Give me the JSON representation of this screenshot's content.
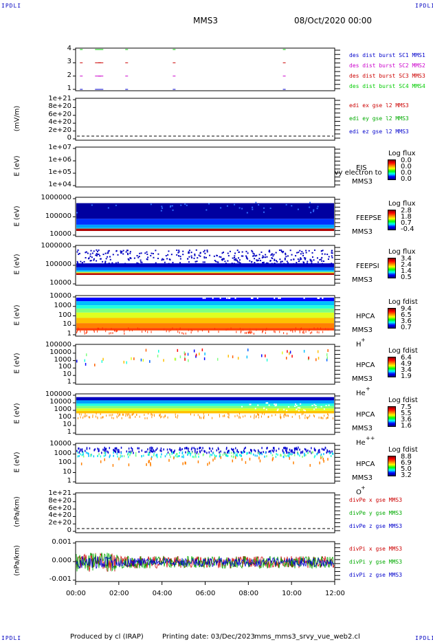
{
  "corners": {
    "tl": "IPDLI",
    "tr": "IPDLI",
    "bl": "IPDLI",
    "br": "IPDLI"
  },
  "header": {
    "title": "MMS3",
    "date": "08/Oct/2020 00:00"
  },
  "footer": {
    "produced": "Produced by cl (IRAP)",
    "printed": "Printing date: 03/Dec/2023",
    "script": "mms_mms3_srvy_vue_web2.cl"
  },
  "chart_data": [
    {
      "type": "scatter",
      "title": "",
      "ylabel": "",
      "yticks": [
        "4",
        "3",
        "2",
        "1"
      ],
      "legend": [
        {
          "label": "des dist burst SC1 MMS1",
          "color": "#0000cc"
        },
        {
          "label": "des dist burst SC2 MMS2",
          "color": "#cc00cc"
        },
        {
          "label": "des dist burst SC3 MMS3",
          "color": "#cc0000"
        },
        {
          "label": "des dist burst SC4 MMS4",
          "color": "#00cc00"
        }
      ],
      "burst_times_hours": [
        0.2,
        0.9,
        1.05,
        2.3,
        4.5,
        9.6
      ]
    },
    {
      "type": "line",
      "ylabel": "(mV/m)",
      "yticks": [
        "1e+21",
        "8e+20",
        "6e+20",
        "4e+20",
        "2e+20",
        "0"
      ],
      "legend": [
        {
          "label": "edi ex gse l2 MMS3",
          "color": "#cc0000"
        },
        {
          "label": "edi ey gse l2 MMS3",
          "color": "#00aa00"
        },
        {
          "label": "edi ez gse l2 MMS3",
          "color": "#0000cc"
        }
      ]
    },
    {
      "type": "heatmap",
      "ylabel": "E (eV)",
      "yticks": [
        "1e+07",
        "1e+06",
        "1e+05",
        "1e+04"
      ],
      "inst": [
        "EIS",
        "MMS3"
      ],
      "overlay": "Lvy electron to",
      "cbar_title": "Log flux",
      "cbar_values": [
        "0.0",
        "0.0",
        "0.0",
        "0.0"
      ]
    },
    {
      "type": "heatmap",
      "ylabel": "E (eV)",
      "yticks": [
        "1000000",
        "100000",
        "10000"
      ],
      "inst": [
        "FEEPSE",
        "MMS3"
      ],
      "cbar_title": "Log flux",
      "cbar_values": [
        "2.8",
        "1.8",
        "0.7",
        "-0.4"
      ]
    },
    {
      "type": "heatmap",
      "ylabel": "E (eV)",
      "yticks": [
        "1000000",
        "100000",
        "10000"
      ],
      "inst": [
        "FEEPSI",
        "MMS3"
      ],
      "cbar_title": "Log flux",
      "cbar_values": [
        "3.4",
        "2.4",
        "1.4",
        "0.5"
      ]
    },
    {
      "type": "heatmap",
      "ylabel": "E (eV)",
      "yticks": [
        "10000",
        "1000",
        "100",
        "10",
        "1"
      ],
      "inst": [
        "HPCA",
        "MMS3",
        "H",
        "+"
      ],
      "cbar_title": "Log fdist",
      "cbar_values": [
        "9.4",
        "6.5",
        "3.6",
        "0.7"
      ]
    },
    {
      "type": "heatmap",
      "ylabel": "E (eV)",
      "yticks": [
        "100000",
        "10000",
        "1000",
        "100",
        "10",
        "1"
      ],
      "inst": [
        "HPCA",
        "MMS3",
        "He",
        "+"
      ],
      "cbar_title": "Log fdist",
      "cbar_values": [
        "6.4",
        "4.9",
        "3.4",
        "1.9"
      ]
    },
    {
      "type": "heatmap",
      "ylabel": "E (eV)",
      "yticks": [
        "100000",
        "10000",
        "1000",
        "100",
        "10",
        "1"
      ],
      "inst": [
        "HPCA",
        "MMS3",
        "He",
        "++"
      ],
      "cbar_title": "Log fdist",
      "cbar_values": [
        "7.5",
        "5.5",
        "3.6",
        "1.6"
      ]
    },
    {
      "type": "heatmap",
      "ylabel": "E (eV)",
      "yticks": [
        "10000",
        "1000",
        "100",
        "10",
        "1"
      ],
      "inst": [
        "HPCA",
        "MMS3",
        "O",
        "+"
      ],
      "cbar_title": "Log fdist",
      "cbar_values": [
        "8.8",
        "6.9",
        "5.0",
        "3.2"
      ]
    },
    {
      "type": "line",
      "ylabel": "(nPa/km)",
      "yticks": [
        "1e+21",
        "8e+20",
        "6e+20",
        "4e+20",
        "2e+20",
        "0"
      ],
      "legend": [
        {
          "label": "divPe x gse MMS3",
          "color": "#cc0000"
        },
        {
          "label": "divPe y gse MMS3",
          "color": "#00aa00"
        },
        {
          "label": "divPe z gse MMS3",
          "color": "#0000cc"
        }
      ]
    },
    {
      "type": "line",
      "ylabel": "(nPa/km)",
      "yticks": [
        "0.001",
        "0.000",
        "-0.001"
      ],
      "ylim": [
        -0.0015,
        0.0015
      ],
      "legend": [
        {
          "label": "divPi x gse MMS3",
          "color": "#cc0000"
        },
        {
          "label": "divPi y gse MMS3",
          "color": "#00aa00"
        },
        {
          "label": "divPi z gse MMS3",
          "color": "#0000cc"
        }
      ]
    }
  ],
  "xaxis": {
    "ticks": [
      "00:00",
      "02:00",
      "04:00",
      "06:00",
      "08:00",
      "10:00",
      "12:00"
    ]
  }
}
